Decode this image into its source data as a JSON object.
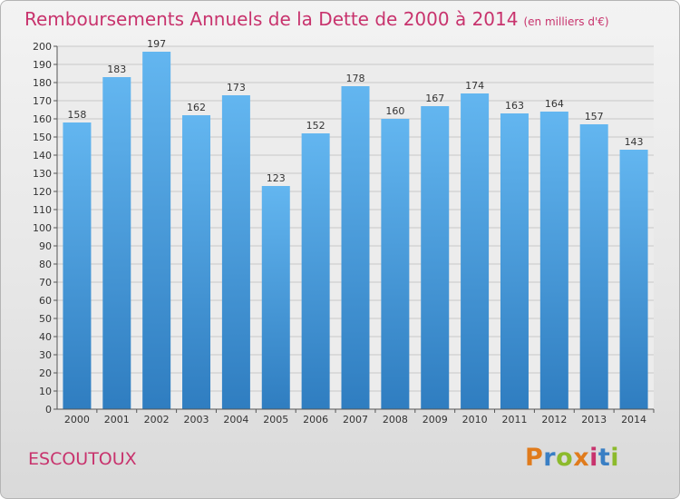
{
  "header": {
    "title": "Remboursements Annuels de la Dette de 2000 à 2014",
    "unit": "(en milliers d'€)"
  },
  "footer": {
    "commune": "ESCOUTOUX",
    "logo_text": "Proxiti",
    "logo_colors": [
      "#e07b1c",
      "#3a7fc4",
      "#8cba2c",
      "#e07b1c",
      "#c8336d",
      "#3a7fc4",
      "#8cba2c"
    ]
  },
  "colors": {
    "title": "#c8336d",
    "bar_light": "#63b6f0",
    "bar_dark": "#2f7dc0",
    "grid": "#c9c9c9"
  },
  "chart_data": {
    "type": "bar",
    "title": "Remboursements Annuels de la Dette de 2000 à 2014",
    "unit": "(en milliers d'€)",
    "categories": [
      "2000",
      "2001",
      "2002",
      "2003",
      "2004",
      "2005",
      "2006",
      "2007",
      "2008",
      "2009",
      "2010",
      "2011",
      "2012",
      "2013",
      "2014"
    ],
    "values": [
      158,
      183,
      197,
      162,
      173,
      123,
      152,
      178,
      160,
      167,
      174,
      163,
      164,
      157,
      143
    ],
    "ylim": [
      0,
      200
    ],
    "ytick_step": 10,
    "grid": true,
    "data_labels": true
  }
}
